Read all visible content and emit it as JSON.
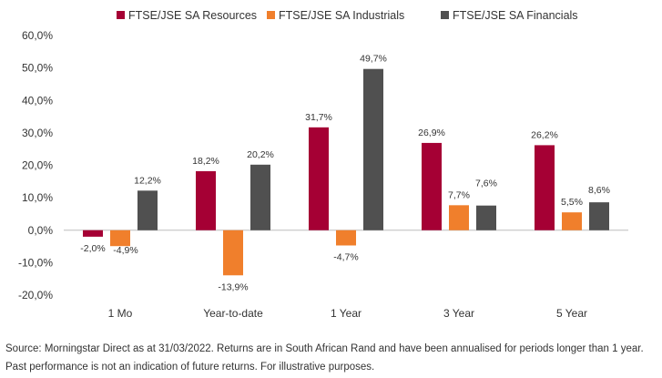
{
  "chart_data": {
    "type": "bar",
    "categories": [
      "1 Mo",
      "Year-to-date",
      "1 Year",
      "3 Year",
      "5 Year"
    ],
    "series": [
      {
        "name": "FTSE/JSE SA Resources",
        "color": "#A50034",
        "values": [
          -2.0,
          18.2,
          31.7,
          26.9,
          26.2
        ],
        "labels": [
          "-2,0%",
          "18,2%",
          "31,7%",
          "26,9%",
          "26,2%"
        ]
      },
      {
        "name": "FTSE/JSE SA Industrials",
        "color": "#F07F2C",
        "values": [
          -4.9,
          -13.9,
          -4.7,
          7.7,
          5.5
        ],
        "labels": [
          "-4,9%",
          "-13,9%",
          "-4,7%",
          "7,7%",
          "5,5%"
        ]
      },
      {
        "name": "FTSE/JSE SA Financials",
        "color": "#505050",
        "values": [
          12.2,
          20.2,
          49.7,
          7.6,
          8.6
        ],
        "labels": [
          "12,2%",
          "20,2%",
          "49,7%",
          "7,6%",
          "8,6%"
        ]
      }
    ],
    "y_ticks": [
      "-20,0%",
      "-10,0%",
      "0,0%",
      "10,0%",
      "20,0%",
      "30,0%",
      "40,0%",
      "50,0%",
      "60,0%"
    ],
    "ylim": [
      -20,
      60
    ],
    "grid": false,
    "legend": "top"
  },
  "source": {
    "line1": "Source: Morningstar Direct as at 31/03/2022. Returns are in South African Rand and have been annualised for periods longer than 1 year.",
    "line2": "Past performance is not an indication of future returns. For illustrative purposes."
  }
}
